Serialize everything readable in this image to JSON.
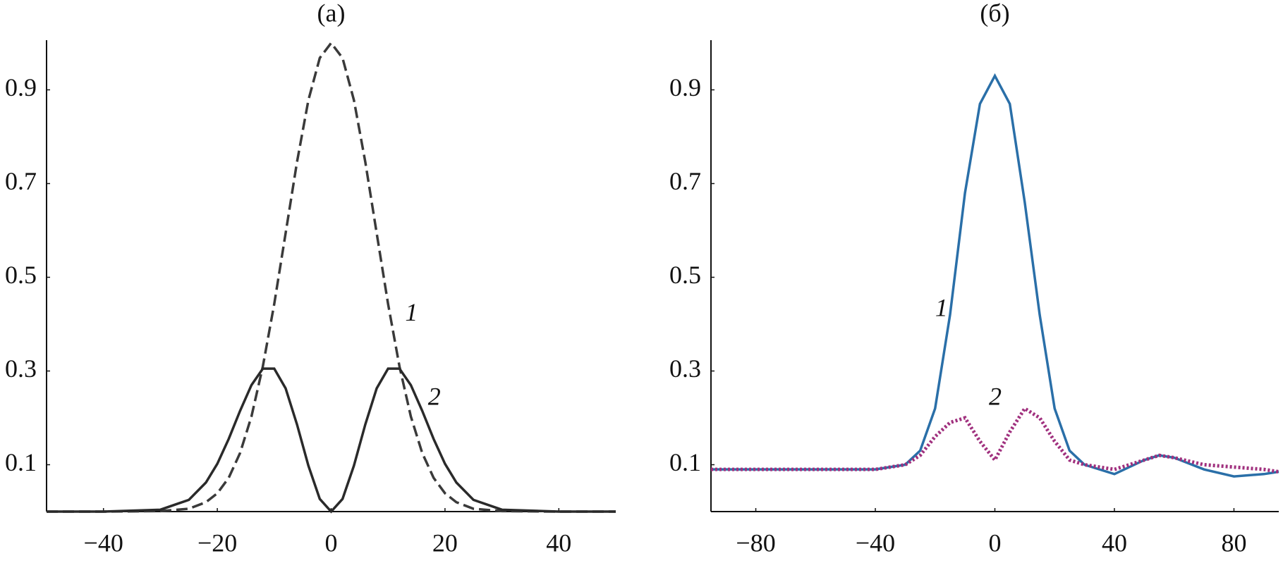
{
  "chart_data": [
    {
      "type": "line",
      "title": "(a)",
      "x": [
        -50,
        -40,
        -30,
        -25,
        -22,
        -20,
        -18,
        -16,
        -14,
        -12,
        -10,
        -8,
        -6,
        -4,
        -2,
        0,
        2,
        4,
        6,
        8,
        10,
        12,
        14,
        16,
        18,
        20,
        22,
        25,
        30,
        40,
        50
      ],
      "series": [
        {
          "name": "1",
          "color": "#3a3a3a",
          "style": "dashed",
          "values": [
            0,
            0,
            0.001,
            0.006,
            0.02,
            0.039,
            0.072,
            0.125,
            0.203,
            0.31,
            0.443,
            0.594,
            0.746,
            0.878,
            0.968,
            1,
            0.968,
            0.878,
            0.746,
            0.594,
            0.443,
            0.31,
            0.203,
            0.125,
            0.072,
            0.039,
            0.02,
            0.006,
            0.001,
            0,
            0
          ]
        },
        {
          "name": "2",
          "color": "#2a2a2a",
          "style": "solid",
          "values": [
            0,
            0,
            0.004,
            0.025,
            0.062,
            0.102,
            0.155,
            0.215,
            0.27,
            0.305,
            0.305,
            0.263,
            0.186,
            0.098,
            0.027,
            0,
            0.027,
            0.098,
            0.186,
            0.263,
            0.305,
            0.305,
            0.27,
            0.215,
            0.155,
            0.102,
            0.062,
            0.025,
            0.004,
            0,
            0
          ]
        }
      ],
      "xlim": [
        -50,
        50
      ],
      "xticks": [
        {
          "value": -40,
          "label": "−40"
        },
        {
          "value": -20,
          "label": "−20"
        },
        0,
        20,
        40
      ],
      "ylim": [
        0,
        1.0
      ],
      "yticks": [
        0.1,
        0.3,
        0.5,
        0.7,
        0.9
      ]
    },
    {
      "type": "line",
      "title": "(б)",
      "x": [
        -95,
        -80,
        -60,
        -40,
        -30,
        -25,
        -20,
        -15,
        -10,
        -5,
        0,
        5,
        10,
        15,
        20,
        25,
        30,
        40,
        50,
        55,
        60,
        70,
        80,
        90,
        95
      ],
      "series": [
        {
          "name": "1",
          "color": "#2a6fa8",
          "style": "solid",
          "values": [
            0.09,
            0.09,
            0.09,
            0.09,
            0.1,
            0.13,
            0.22,
            0.42,
            0.68,
            0.87,
            0.93,
            0.87,
            0.66,
            0.42,
            0.22,
            0.13,
            0.1,
            0.08,
            0.11,
            0.12,
            0.115,
            0.09,
            0.075,
            0.08,
            0.085
          ]
        },
        {
          "name": "2",
          "color": "#a0307e",
          "style": "dotted",
          "values": [
            0.09,
            0.09,
            0.09,
            0.09,
            0.1,
            0.12,
            0.16,
            0.19,
            0.2,
            0.15,
            0.11,
            0.17,
            0.22,
            0.2,
            0.15,
            0.11,
            0.1,
            0.09,
            0.11,
            0.12,
            0.115,
            0.1,
            0.095,
            0.09,
            0.085
          ]
        }
      ],
      "xlim": [
        -95,
        95
      ],
      "xticks": [
        {
          "value": -80,
          "label": "−80"
        },
        {
          "value": -40,
          "label": "−40"
        },
        0,
        40,
        80
      ],
      "ylim": [
        0,
        1.0
      ],
      "yticks": [
        0.1,
        0.3,
        0.5,
        0.7,
        0.9
      ]
    }
  ]
}
